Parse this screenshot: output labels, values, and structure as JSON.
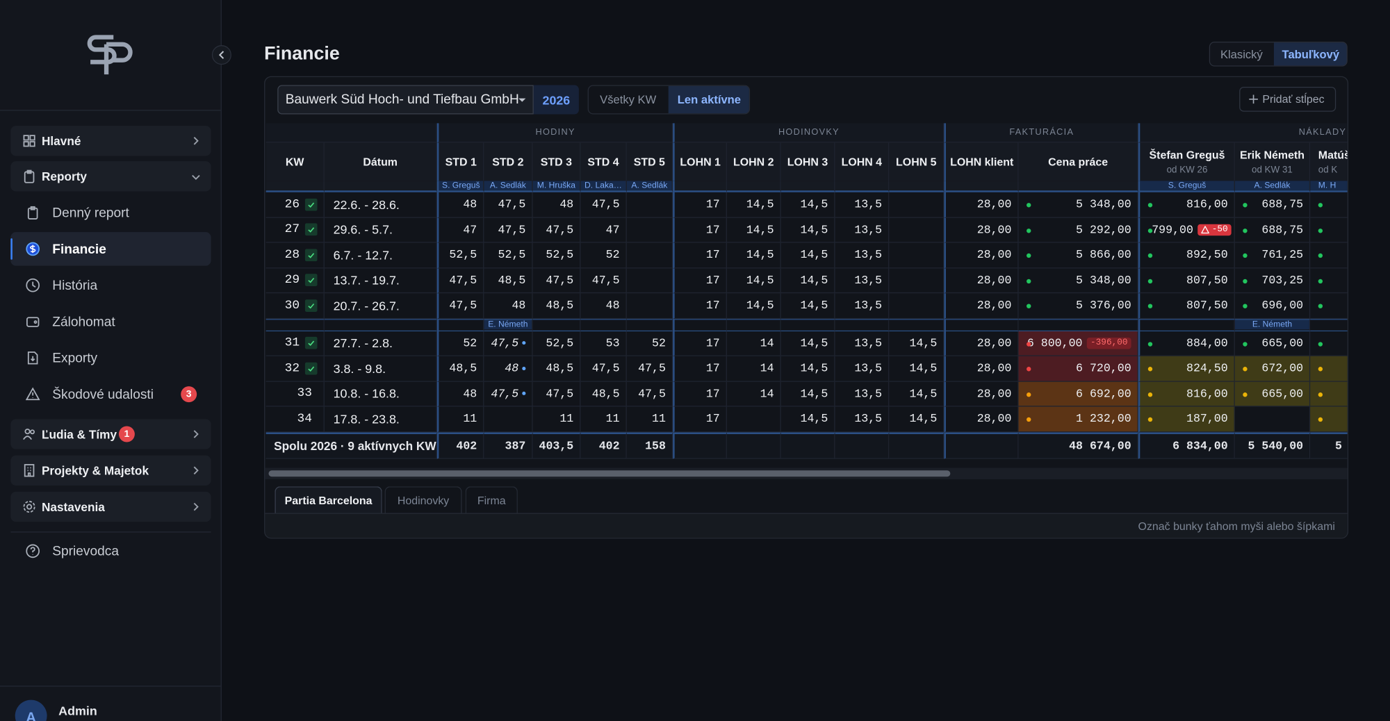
{
  "sidebar": {
    "nav": [
      {
        "label": "Hlavné"
      },
      {
        "label": "Reporty",
        "children": [
          {
            "label": "Denný report"
          },
          {
            "label": "Financie"
          },
          {
            "label": "História"
          },
          {
            "label": "Zálohomat"
          },
          {
            "label": "Exporty"
          },
          {
            "label": "Škodové udalosti",
            "badge": "3"
          }
        ]
      },
      {
        "label": "Ľudia & Tímy",
        "badge": "1"
      },
      {
        "label": "Projekty & Majetok"
      },
      {
        "label": "Nastavenia"
      }
    ],
    "guide": "Sprievodca",
    "user": {
      "initial": "A",
      "name": "Admin"
    }
  },
  "header": {
    "title": "Financie",
    "views": [
      "Klasický",
      "Tabuľkový"
    ]
  },
  "toolbar": {
    "company": "Bauwerk Süd Hoch- und Tiefbau GmbH",
    "year": "2026",
    "filters": [
      "Všetky KW",
      "Len aktívne"
    ],
    "add_column": "Pridať stĺpec"
  },
  "table": {
    "groups": [
      "HODINY",
      "HODINOVKY",
      "FAKTURÁCIA",
      "NÁKLADY I"
    ],
    "columns": [
      {
        "label": "KW"
      },
      {
        "label": "Dátum"
      },
      {
        "label": "STD 1",
        "sub": "S. Greguš"
      },
      {
        "label": "STD 2",
        "sub": "A. Sedlák"
      },
      {
        "label": "STD 3",
        "sub": "M. Hruška"
      },
      {
        "label": "STD 4",
        "sub": "D. Laka…"
      },
      {
        "label": "STD 5",
        "sub": "A. Sedlák"
      },
      {
        "label": "LOHN 1"
      },
      {
        "label": "LOHN 2"
      },
      {
        "label": "LOHN 3"
      },
      {
        "label": "LOHN 4"
      },
      {
        "label": "LOHN 5"
      },
      {
        "label": "LOHN klient"
      },
      {
        "label": "Cena práce"
      },
      {
        "label": "Štefan Greguš",
        "note": "od KW 26",
        "sub": "S. Greguš"
      },
      {
        "label": "Erik Németh",
        "note": "od KW 31",
        "sub": "A. Sedlák"
      },
      {
        "label": "Matúš",
        "note": "od K",
        "sub": "M. H"
      }
    ],
    "rows": [
      [
        "26",
        "22.6. - 28.6.",
        "48",
        "47,5",
        "48",
        "47,5",
        null,
        "17",
        "14,5",
        "14,5",
        "13,5",
        null,
        "28,00",
        "5 348,00",
        "816,00",
        "688,75",
        null
      ],
      [
        "27",
        "29.6. - 5.7.",
        "47",
        "47,5",
        "47,5",
        "47",
        null,
        "17",
        "14,5",
        "14,5",
        "13,5",
        null,
        "28,00",
        "5 292,00",
        {
          "value": "799,00",
          "badge": "-50"
        },
        "688,75",
        null
      ],
      [
        "28",
        "6.7. - 12.7.",
        "52,5",
        "52,5",
        "52,5",
        "52",
        null,
        "17",
        "14,5",
        "14,5",
        "13,5",
        null,
        "28,00",
        "5 866,00",
        "892,50",
        "761,25",
        null
      ],
      [
        "29",
        "13.7. - 19.7.",
        "47,5",
        "48,5",
        "47,5",
        "47,5",
        null,
        "17",
        "14,5",
        "14,5",
        "13,5",
        null,
        "28,00",
        "5 348,00",
        "807,50",
        "703,25",
        null
      ],
      [
        "30",
        "20.7. - 26.7.",
        "47,5",
        "48",
        "48,5",
        "48",
        null,
        "17",
        "14,5",
        "14,5",
        "13,5",
        null,
        "28,00",
        "5 376,00",
        "807,50",
        "696,00",
        null
      ],
      [
        "31",
        "27.7. - 2.8.",
        "52",
        "47,5",
        "52,5",
        "53",
        "52",
        "17",
        "14",
        "14,5",
        "13,5",
        "14,5",
        "28,00",
        {
          "value": "6 800,00",
          "badge": "-396,00"
        },
        "884,00",
        "665,00",
        null
      ],
      [
        "32",
        "3.8. - 9.8.",
        "48,5",
        "48",
        "48,5",
        "47,5",
        "47,5",
        "17",
        "14",
        "14,5",
        "13,5",
        "14,5",
        "28,00",
        "6 720,00",
        "824,50",
        "672,00",
        null
      ],
      [
        "33",
        "10.8. - 16.8.",
        "48",
        "47,5",
        "47,5",
        "48,5",
        "47,5",
        "17",
        "14",
        "14,5",
        "13,5",
        "14,5",
        "28,00",
        "6 692,00",
        "816,00",
        "665,00",
        null
      ],
      [
        "34",
        "17.8. - 23.8.",
        "11",
        null,
        "11",
        "11",
        "11",
        "17",
        null,
        "14,5",
        "13,5",
        "14,5",
        "28,00",
        "1 232,00",
        "187,00",
        null,
        null
      ]
    ],
    "separator": [
      null,
      null,
      null,
      "E. Németh",
      null,
      null,
      null,
      null,
      null,
      null,
      null,
      null,
      null,
      null,
      null,
      "E. Németh",
      null
    ],
    "total": {
      "label": "Spolu 2026 · 9 aktívnych KW",
      "cells": [
        "402",
        "387",
        "403,5",
        "402",
        "158",
        null,
        null,
        null,
        null,
        null,
        null,
        "48 674,00",
        "6 834,00",
        "5 540,00",
        "5"
      ]
    }
  },
  "tabs": [
    "Partia Barcelona",
    "Hodinovky",
    "Firma"
  ],
  "hint": "Označ bunky ťahom myši alebo šípkami"
}
